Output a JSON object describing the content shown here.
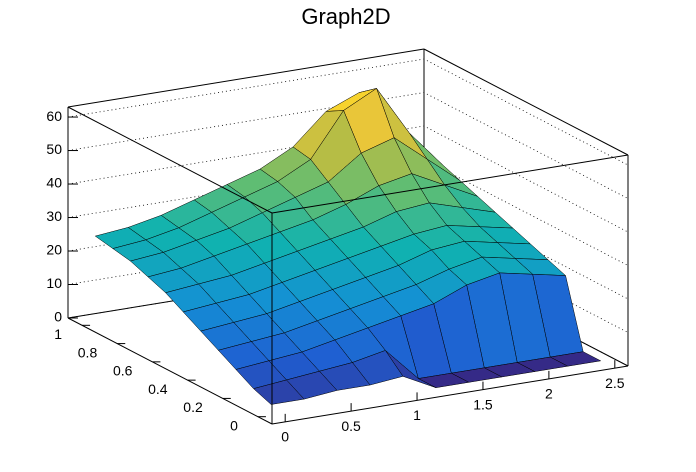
{
  "chart_data": {
    "type": "surface",
    "title": "Graph2D",
    "x": [
      0,
      0.25,
      0.5,
      0.75,
      1,
      1.25,
      1.5,
      1.75,
      2,
      2.25,
      2.5
    ],
    "y": [
      0,
      0.1,
      0.2,
      0.3,
      0.4,
      0.5,
      0.6,
      0.7,
      0.8,
      0.9,
      1
    ],
    "z": [
      [
        3,
        3,
        4,
        4,
        5,
        0,
        0,
        0,
        0,
        0,
        0
      ],
      [
        5,
        6,
        7,
        8,
        10,
        0,
        0,
        0,
        0,
        0,
        0
      ],
      [
        8,
        9,
        10,
        12,
        14,
        16,
        18,
        22,
        24,
        22,
        20
      ],
      [
        11,
        12,
        13,
        15,
        17,
        19,
        21,
        24,
        26,
        24,
        22
      ],
      [
        14,
        15,
        16,
        18,
        20,
        22,
        24,
        27,
        28,
        26,
        24
      ],
      [
        17,
        18,
        19,
        21,
        23,
        25,
        27,
        29,
        30,
        28,
        26
      ],
      [
        20,
        21,
        22,
        24,
        26,
        28,
        30,
        33,
        34,
        31,
        28
      ],
      [
        22,
        23,
        25,
        27,
        29,
        31,
        34,
        38,
        40,
        35,
        30
      ],
      [
        24,
        25,
        27,
        29,
        32,
        35,
        38,
        45,
        48,
        40,
        32
      ],
      [
        25,
        26,
        28,
        31,
        34,
        37,
        42,
        55,
        60,
        45,
        34
      ],
      [
        26,
        27,
        29,
        32,
        35,
        38,
        43,
        52,
        56,
        44,
        33
      ]
    ],
    "xlim": [
      -0.1,
      2.6
    ],
    "ylim": [
      -0.08,
      1.08
    ],
    "zlim": [
      0,
      63
    ],
    "xticks": [
      0,
      0.5,
      1,
      1.5,
      2,
      2.5
    ],
    "yticks": [
      0,
      0.2,
      0.4,
      0.6,
      0.8,
      1
    ],
    "zticks": [
      0,
      10,
      20,
      30,
      40,
      50,
      60
    ],
    "grid": true,
    "palette": [
      "#352a87",
      "#1f5fd2",
      "#1490d4",
      "#10b2b0",
      "#5fbd73",
      "#b6bd45",
      "#f7c936",
      "#f9fb0e"
    ]
  }
}
